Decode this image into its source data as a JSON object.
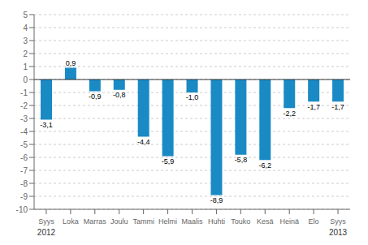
{
  "chart_data": {
    "type": "bar",
    "categories": [
      "Syys",
      "Loka",
      "Marras",
      "Joulu",
      "Tammi",
      "Helmi",
      "Maalis",
      "Huhti",
      "Touko",
      "Kesä",
      "Heinä",
      "Elo",
      "Syys"
    ],
    "values": [
      -3.1,
      0.9,
      -0.9,
      -0.8,
      -4.4,
      -5.9,
      -1.0,
      -8.9,
      -5.8,
      -6.2,
      -2.2,
      -1.7,
      -1.7
    ],
    "value_labels": [
      "-3,1",
      "0,9",
      "-0,9",
      "-0,8",
      "-4,4",
      "-5,9",
      "-1,0",
      "-8,9",
      "-5,8",
      "-6,2",
      "-2,2",
      "-1,7",
      "-1,7"
    ],
    "color": "#1a8ac4",
    "ylim": [
      -10,
      5
    ],
    "yticks": [
      -10,
      -9,
      -8,
      -7,
      -6,
      -5,
      -4,
      -3,
      -2,
      -1,
      0,
      1,
      2,
      3,
      4,
      5
    ],
    "grid": true,
    "data_labels": true,
    "annotations": [
      "2012",
      "2013"
    ]
  }
}
